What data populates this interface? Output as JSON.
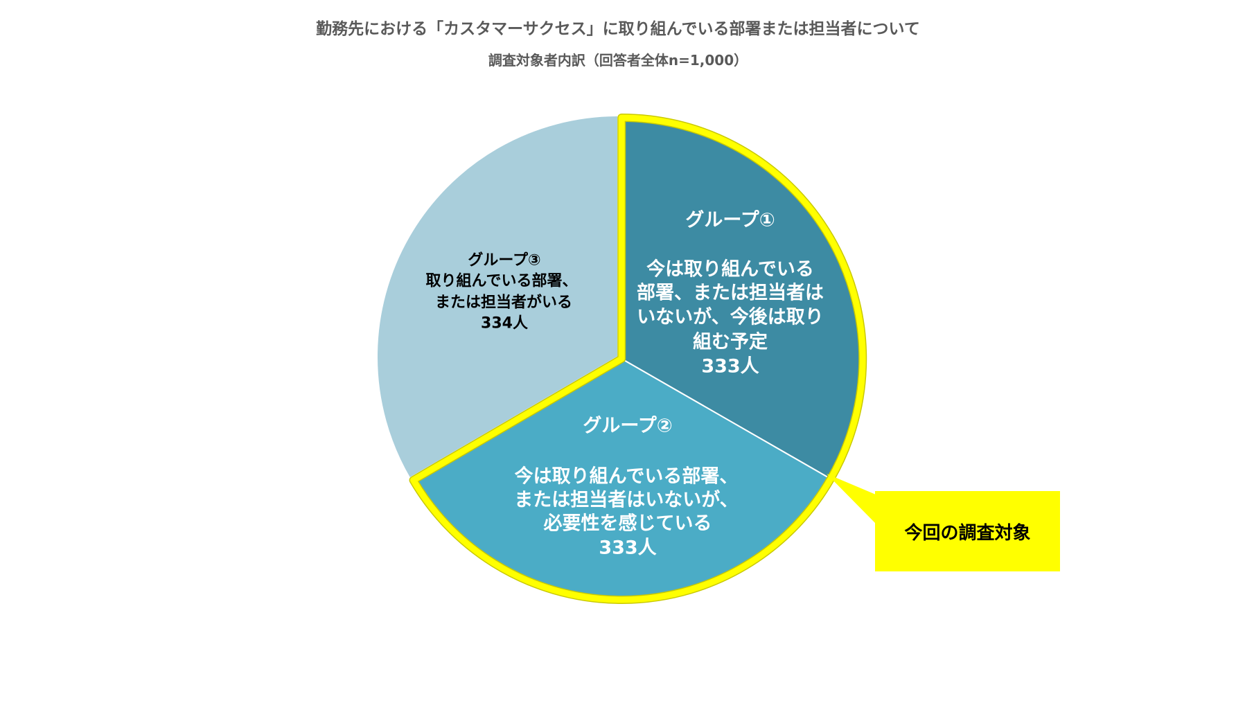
{
  "chart_data": {
    "type": "pie",
    "title": "勤務先における「カスタマーサクセス」に取り組んでいる部署または担当者について",
    "subtitle": "調査対象者内訳（回答者全体n=1,000）",
    "slices": [
      {
        "name": "グループ①",
        "lines": [
          "今は取り組んでいる",
          "部署、または担当者は",
          "いないが、今後は取り",
          "組む予定"
        ],
        "value": 333,
        "value_label": "333人",
        "color": "#3D8BA3",
        "highlighted": true
      },
      {
        "name": "グループ②",
        "lines": [
          "今は取り組んでいる部署、",
          "または担当者はいないが、",
          "必要性を感じている"
        ],
        "value": 333,
        "value_label": "333人",
        "color": "#4BACC6",
        "highlighted": true
      },
      {
        "name": "グループ③",
        "lines": [
          "取り組んでいる部署、",
          "または担当者がいる"
        ],
        "value": 334,
        "value_label": "334人",
        "color": "#A9CEDB",
        "highlighted": false
      }
    ],
    "highlight_color": "#FFFF00"
  },
  "callout": {
    "text": "今回の調査対象",
    "color": "#FFFF00"
  }
}
